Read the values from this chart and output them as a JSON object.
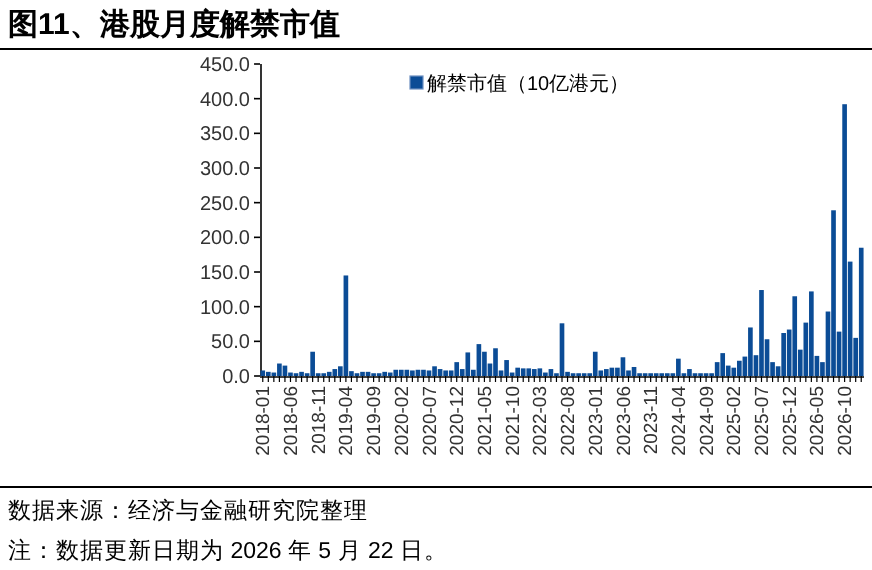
{
  "chart_data": {
    "type": "bar",
    "title": "图11、港股月度解禁市值",
    "categories": [
      "2018-01",
      null,
      null,
      null,
      null,
      "2018-06",
      null,
      null,
      null,
      null,
      "2018-11",
      null,
      null,
      null,
      null,
      "2019-04",
      null,
      null,
      null,
      null,
      "2019-09",
      null,
      null,
      null,
      null,
      "2020-02",
      null,
      null,
      null,
      null,
      "2020-07",
      null,
      null,
      null,
      null,
      "2020-12",
      null,
      null,
      null,
      null,
      "2021-05",
      null,
      null,
      null,
      null,
      "2021-10",
      null,
      null,
      null,
      null,
      "2022-03",
      null,
      null,
      null,
      null,
      "2022-08",
      null,
      null,
      null,
      null,
      "2023-01",
      null,
      null,
      null,
      null,
      "2023-06",
      null,
      null,
      null,
      null,
      "2023-11",
      null,
      null,
      null,
      null,
      "2024-04",
      null,
      null,
      null,
      null,
      "2024-09",
      null,
      null,
      null,
      null,
      "2025-02",
      null,
      null,
      null,
      null,
      "2025-07",
      null,
      null,
      null,
      null,
      "2025-12",
      null,
      null,
      null,
      null,
      "2026-05",
      null,
      null,
      null,
      null,
      "2026-10",
      null,
      null,
      null
    ],
    "series": [
      {
        "name": "解禁市值（10亿港元）",
        "color": "#0b4c96",
        "values": [
          8,
          6,
          5,
          18,
          15,
          5,
          4,
          6,
          4,
          35,
          4,
          4,
          6,
          10,
          14,
          145,
          7,
          4,
          6,
          6,
          4,
          4,
          6,
          5,
          9,
          9,
          9,
          8,
          9,
          9,
          8,
          14,
          10,
          8,
          8,
          20,
          10,
          34,
          9,
          46,
          35,
          18,
          40,
          8,
          23,
          5,
          12,
          11,
          11,
          10,
          11,
          5,
          10,
          4,
          76,
          6,
          4,
          4,
          4,
          4,
          35,
          8,
          10,
          12,
          12,
          27,
          8,
          13,
          4,
          4,
          4,
          4,
          4,
          4,
          4,
          25,
          4,
          10,
          4,
          4,
          4,
          4,
          20,
          33,
          15,
          12,
          22,
          28,
          70,
          30,
          124,
          53,
          20,
          14,
          62,
          67,
          115,
          38,
          77,
          122,
          29,
          20,
          93,
          239,
          64,
          392,
          165,
          55,
          185
        ]
      }
    ],
    "ylim": [
      0,
      450
    ],
    "yticks": [
      {
        "value": 0,
        "label": "0.0"
      },
      {
        "value": 50,
        "label": "50.0"
      },
      {
        "value": 100,
        "label": "100.0"
      },
      {
        "value": 150,
        "label": "150.0"
      },
      {
        "value": 200,
        "label": "200.0"
      },
      {
        "value": 250,
        "label": "250.0"
      },
      {
        "value": 300,
        "label": "300.0"
      },
      {
        "value": 350,
        "label": "350.0"
      },
      {
        "value": 400,
        "label": "400.0"
      },
      {
        "value": 450,
        "label": "450.0"
      }
    ],
    "legend": "top",
    "annotations": [
      "数据来源：经济与金融研究院整理",
      "注：数据更新日期为 2026 年 5 月 22 日。"
    ]
  }
}
